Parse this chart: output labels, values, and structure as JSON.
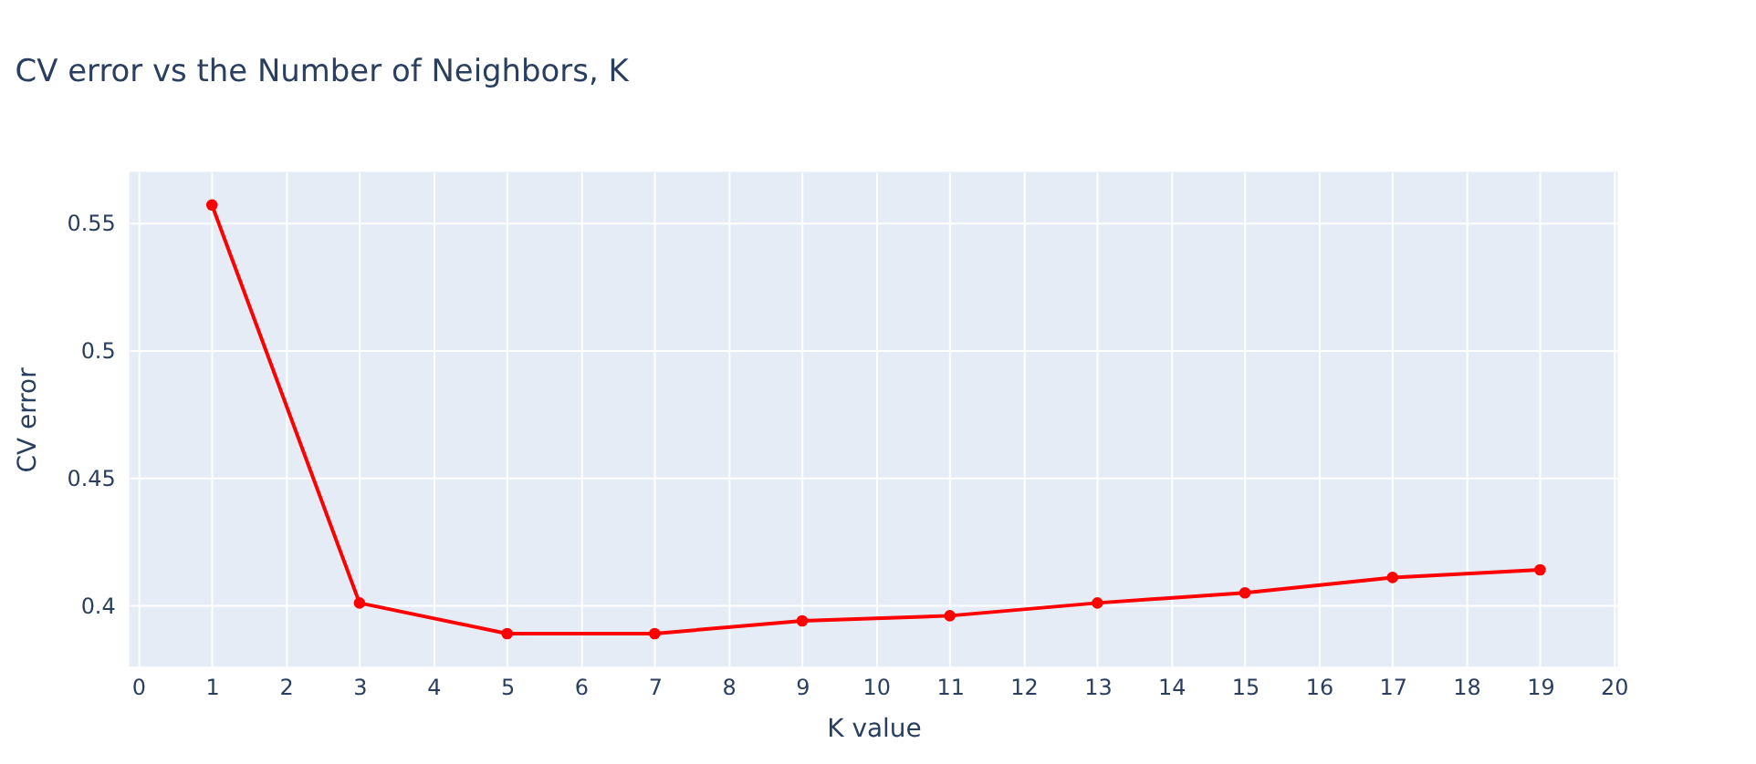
{
  "chart_data": {
    "type": "line",
    "title": "CV error vs the Number of Neighbors, K",
    "xlabel": "K value",
    "ylabel": "CV error",
    "x": [
      1,
      3,
      5,
      7,
      9,
      11,
      13,
      15,
      17,
      19
    ],
    "series": [
      {
        "color": "#ff0000",
        "values": [
          0.557,
          0.401,
          0.389,
          0.389,
          0.394,
          0.396,
          0.401,
          0.405,
          0.411,
          0.414
        ]
      }
    ],
    "xlim": [
      -0.12,
      20.05
    ],
    "xticks": [
      0,
      1,
      2,
      3,
      4,
      5,
      6,
      7,
      8,
      9,
      10,
      11,
      12,
      13,
      14,
      15,
      16,
      17,
      18,
      19,
      20
    ],
    "ylim": [
      0.376,
      0.57
    ],
    "yticks": [
      0.4,
      0.45,
      0.5,
      0.55
    ],
    "grid": true,
    "marker": "circle",
    "line_style": "solid"
  }
}
